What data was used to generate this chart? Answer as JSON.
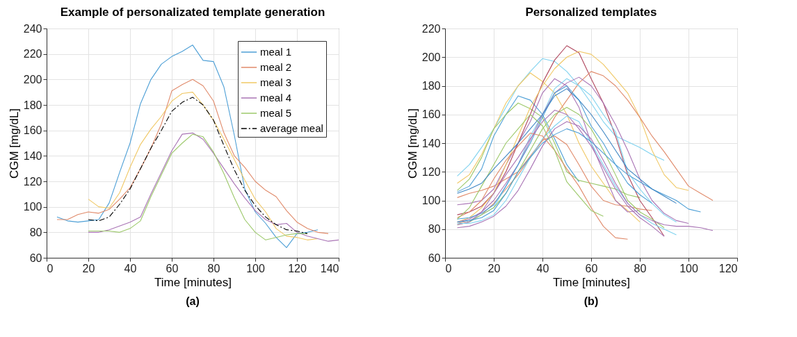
{
  "chart_data": [
    {
      "type": "line",
      "title": "Example of personalizated template generation",
      "xlabel": "Time [minutes]",
      "ylabel": "CGM [mg/dL]",
      "annotations": [
        "(a)"
      ],
      "xlim": [
        0,
        140
      ],
      "xticks": [
        0,
        20,
        40,
        60,
        80,
        100,
        120,
        140
      ],
      "ylim": [
        60,
        240
      ],
      "yticks": [
        60,
        80,
        100,
        120,
        140,
        160,
        180,
        200,
        220,
        240
      ],
      "grid": true,
      "legend": "top right",
      "marker": "none",
      "series": [
        {
          "name": "meal 1",
          "color": "#4d9fd6",
          "x": [
            5,
            10,
            15,
            20,
            25,
            30,
            35,
            40,
            45,
            50,
            55,
            60,
            65,
            70,
            75,
            80,
            85,
            90,
            95,
            100,
            105,
            110,
            115,
            120,
            125,
            130
          ],
          "values": [
            92,
            89,
            88,
            89,
            90,
            103,
            127,
            150,
            181,
            200,
            212,
            218,
            222,
            227,
            215,
            214,
            194,
            156,
            114,
            96,
            87,
            76,
            68,
            79,
            80,
            82
          ]
        },
        {
          "name": "meal 2",
          "color": "#e08a6a",
          "x": [
            5,
            10,
            15,
            20,
            25,
            30,
            35,
            40,
            45,
            50,
            55,
            60,
            65,
            70,
            75,
            80,
            85,
            90,
            95,
            100,
            105,
            110,
            115,
            120,
            125,
            130,
            135
          ],
          "values": [
            90,
            90,
            94,
            96,
            95,
            98,
            106,
            115,
            130,
            146,
            165,
            191,
            196,
            200,
            195,
            183,
            158,
            140,
            131,
            120,
            113,
            108,
            97,
            88,
            83,
            80,
            79
          ]
        },
        {
          "name": "meal 3",
          "color": "#f0c865",
          "x": [
            20,
            25,
            30,
            35,
            40,
            45,
            50,
            55,
            60,
            65,
            70,
            75,
            80,
            85,
            90,
            95,
            100,
            105,
            110,
            115,
            120,
            125,
            130
          ],
          "values": [
            106,
            100,
            99,
            111,
            131,
            149,
            161,
            171,
            183,
            189,
            190,
            180,
            168,
            153,
            137,
            121,
            106,
            96,
            83,
            77,
            76,
            74,
            75
          ]
        },
        {
          "name": "meal 4",
          "color": "#a974b5",
          "x": [
            20,
            25,
            30,
            35,
            40,
            45,
            50,
            55,
            60,
            65,
            70,
            75,
            80,
            85,
            90,
            95,
            100,
            105,
            110,
            115,
            120,
            125,
            130,
            135,
            140
          ],
          "values": [
            80,
            80,
            82,
            85,
            88,
            92,
            110,
            127,
            144,
            157,
            158,
            153,
            142,
            130,
            118,
            107,
            97,
            90,
            86,
            87,
            80,
            77,
            75,
            73,
            74
          ]
        },
        {
          "name": "meal 5",
          "color": "#9cc86a",
          "x": [
            20,
            25,
            30,
            35,
            40,
            45,
            50,
            55,
            60,
            65,
            70,
            75,
            80,
            85,
            90,
            95,
            100,
            105,
            110,
            115,
            120,
            125
          ],
          "values": [
            81,
            81,
            81,
            80,
            83,
            89,
            108,
            125,
            142,
            150,
            157,
            155,
            143,
            126,
            107,
            90,
            80,
            74,
            76,
            78,
            79,
            79
          ]
        },
        {
          "name": "average meal",
          "color": "#000000",
          "line_style": "dashdot",
          "x": [
            20,
            25,
            30,
            35,
            40,
            45,
            50,
            55,
            60,
            65,
            70,
            75,
            80,
            85,
            90,
            95,
            100,
            105,
            110,
            115,
            120,
            125
          ],
          "values": [
            90,
            89,
            92,
            102,
            114,
            130,
            146,
            160,
            175,
            182,
            186,
            180,
            168,
            148,
            129,
            113,
            101,
            92,
            86,
            82,
            81,
            79
          ]
        }
      ]
    },
    {
      "type": "line",
      "title": "Personalized templates",
      "xlabel": "Time [minutes]",
      "ylabel": "CGM [mg/dL]",
      "annotations": [
        "(b)"
      ],
      "xlim": [
        0,
        120
      ],
      "xticks": [
        0,
        20,
        40,
        60,
        80,
        100,
        120
      ],
      "ylim": [
        60,
        220
      ],
      "yticks": [
        60,
        80,
        100,
        120,
        140,
        160,
        180,
        200,
        220
      ],
      "grid": true,
      "legend": false,
      "marker": "none",
      "series": [
        {
          "color": "#7fd2ef",
          "x": [
            5,
            10,
            15,
            20,
            25,
            30,
            35,
            40,
            45,
            50,
            55,
            60,
            65,
            70,
            75,
            80,
            85,
            90
          ],
          "values": [
            117,
            125,
            137,
            150,
            165,
            180,
            190,
            199,
            197,
            190,
            180,
            168,
            155,
            145,
            141,
            137,
            132,
            128
          ]
        },
        {
          "color": "#f0c865",
          "x": [
            5,
            10,
            15,
            20,
            25,
            30,
            35,
            40,
            45,
            50,
            55,
            60,
            65,
            70,
            75,
            80
          ],
          "values": [
            112,
            118,
            132,
            150,
            168,
            180,
            189,
            183,
            175,
            160,
            140,
            124,
            112,
            100,
            93,
            85
          ]
        },
        {
          "color": "#4d9fd6",
          "x": [
            5,
            10,
            15,
            20,
            25,
            30,
            35,
            40,
            45,
            50,
            55
          ],
          "values": [
            106,
            110,
            122,
            145,
            160,
            173,
            170,
            160,
            143,
            125,
            113
          ]
        },
        {
          "color": "#9cc86a",
          "x": [
            5,
            10,
            15,
            20,
            25,
            30,
            35,
            40,
            45,
            50,
            55,
            60,
            65,
            70,
            75,
            80
          ],
          "values": [
            107,
            115,
            130,
            150,
            160,
            168,
            164,
            158,
            140,
            120,
            114,
            112,
            110,
            108,
            104,
            102
          ]
        },
        {
          "color": "#e08a6a",
          "x": [
            5,
            10,
            15,
            20,
            25,
            30,
            35,
            40,
            45,
            50,
            55,
            60,
            65,
            70,
            75,
            80,
            85
          ],
          "values": [
            102,
            105,
            107,
            110,
            115,
            120,
            131,
            142,
            145,
            139,
            125,
            110,
            100,
            97,
            96,
            94,
            93
          ]
        },
        {
          "color": "#a974b5",
          "x": [
            5,
            10,
            15,
            20,
            25,
            30,
            35,
            40,
            45,
            50,
            55,
            60,
            65,
            70,
            75,
            80
          ],
          "values": [
            97,
            98,
            100,
            108,
            125,
            140,
            155,
            175,
            185,
            180,
            165,
            140,
            120,
            100,
            92,
            93
          ]
        },
        {
          "color": "#b0475e",
          "x": [
            5,
            10,
            15,
            20,
            25,
            30,
            35,
            40,
            45,
            50,
            55,
            60,
            65,
            70,
            75,
            80,
            85,
            90
          ],
          "values": [
            90,
            92,
            96,
            105,
            120,
            140,
            160,
            182,
            198,
            208,
            203,
            185,
            168,
            145,
            118,
            100,
            88,
            75
          ]
        },
        {
          "color": "#f0c865",
          "x": [
            5,
            10,
            15,
            20,
            25,
            30,
            35,
            40,
            45,
            50,
            55,
            60,
            65,
            70,
            75,
            80,
            85,
            90,
            95,
            100
          ],
          "values": [
            85,
            88,
            95,
            105,
            125,
            145,
            165,
            180,
            192,
            200,
            204,
            202,
            195,
            185,
            175,
            158,
            135,
            118,
            109,
            107
          ]
        },
        {
          "color": "#e08a6a",
          "x": [
            5,
            10,
            15,
            20,
            25,
            30,
            35,
            40,
            45,
            50,
            55,
            60,
            65,
            70,
            75,
            80,
            85,
            90,
            95,
            100,
            105,
            110
          ],
          "values": [
            84,
            86,
            90,
            98,
            108,
            118,
            130,
            142,
            158,
            170,
            182,
            190,
            187,
            180,
            170,
            158,
            145,
            134,
            122,
            110,
            105,
            100
          ]
        },
        {
          "color": "#7fd2ef",
          "x": [
            5,
            10,
            15,
            20,
            25,
            30,
            35,
            40,
            45,
            50,
            55,
            60,
            65,
            70,
            75,
            80,
            85,
            90,
            95
          ],
          "values": [
            85,
            86,
            90,
            95,
            110,
            125,
            145,
            160,
            178,
            185,
            180,
            173,
            160,
            148,
            120,
            108,
            98,
            90,
            85
          ]
        },
        {
          "color": "#a974b5",
          "x": [
            5,
            10,
            15,
            20,
            25,
            30,
            35,
            40,
            45,
            50,
            55,
            60,
            65,
            70,
            75,
            80,
            85,
            90,
            95,
            100
          ],
          "values": [
            85,
            87,
            92,
            100,
            112,
            125,
            142,
            160,
            175,
            182,
            186,
            180,
            168,
            153,
            135,
            115,
            100,
            91,
            86,
            84
          ]
        },
        {
          "color": "#4d9fd6",
          "x": [
            5,
            10,
            15,
            20,
            25,
            30,
            35,
            40,
            45,
            50,
            55,
            60,
            65,
            70,
            75,
            80,
            85
          ],
          "values": [
            87,
            88,
            91,
            97,
            110,
            125,
            140,
            158,
            175,
            180,
            170,
            152,
            140,
            125,
            112,
            104,
            98
          ]
        },
        {
          "color": "#9cc86a",
          "x": [
            5,
            10,
            15,
            20,
            25,
            30,
            35,
            40,
            45,
            50,
            55,
            60,
            65,
            70,
            75,
            80,
            85,
            90
          ],
          "values": [
            83,
            85,
            90,
            95,
            105,
            120,
            135,
            150,
            160,
            165,
            160,
            150,
            135,
            118,
            100,
            92,
            87,
            81
          ]
        },
        {
          "color": "#a974b5",
          "x": [
            5,
            10,
            15,
            20,
            25,
            30,
            35,
            40,
            45,
            50,
            55,
            60,
            65,
            70,
            75,
            80,
            85,
            90
          ],
          "values": [
            83,
            85,
            92,
            105,
            118,
            130,
            143,
            155,
            163,
            160,
            150,
            138,
            123,
            108,
            96,
            88,
            82,
            75
          ]
        },
        {
          "color": "#7fd2ef",
          "x": [
            5,
            10,
            15,
            20,
            25,
            30,
            35,
            40,
            45,
            50,
            55,
            60,
            65,
            70,
            75,
            80,
            85,
            90,
            95
          ],
          "values": [
            84,
            84,
            86,
            90,
            100,
            115,
            130,
            143,
            152,
            159,
            155,
            140,
            125,
            110,
            98,
            90,
            84,
            80,
            76
          ]
        },
        {
          "color": "#a974b5",
          "x": [
            5,
            10,
            15,
            20,
            25,
            30,
            35,
            40,
            45,
            50,
            55,
            60,
            65,
            70,
            75,
            80,
            85,
            90,
            95,
            100,
            105,
            110
          ],
          "values": [
            81,
            82,
            85,
            89,
            96,
            107,
            122,
            138,
            150,
            155,
            152,
            143,
            128,
            112,
            98,
            90,
            86,
            83,
            82,
            82,
            81,
            79
          ]
        },
        {
          "color": "#4d9fd6",
          "x": [
            5,
            10,
            15,
            20,
            25,
            30,
            35,
            40,
            45,
            50,
            55,
            60,
            65,
            70,
            75,
            80,
            85,
            90,
            95,
            100,
            105
          ],
          "values": [
            85,
            86,
            88,
            93,
            105,
            120,
            130,
            140,
            146,
            150,
            147,
            141,
            133,
            125,
            118,
            113,
            108,
            104,
            100,
            94,
            92
          ]
        },
        {
          "color": "#e08a6a",
          "x": [
            5,
            10,
            15,
            20,
            25,
            30,
            35,
            40,
            45,
            50,
            55,
            60,
            65,
            70,
            75
          ],
          "values": [
            88,
            92,
            100,
            115,
            128,
            138,
            147,
            145,
            135,
            122,
            110,
            95,
            82,
            74,
            73
          ]
        },
        {
          "color": "#9cc86a",
          "x": [
            5,
            10,
            15,
            20,
            25,
            30,
            35,
            40,
            45,
            50,
            55,
            60,
            65
          ],
          "values": [
            87,
            95,
            110,
            125,
            140,
            150,
            160,
            152,
            135,
            113,
            103,
            93,
            89
          ]
        },
        {
          "color": "#3e86c4",
          "x": [
            5,
            10,
            15,
            20,
            25,
            30,
            35,
            40,
            45,
            50,
            55,
            60,
            65,
            70,
            75,
            80,
            85,
            90,
            95
          ],
          "values": [
            105,
            108,
            112,
            122,
            131,
            140,
            150,
            160,
            173,
            178,
            170,
            160,
            148,
            135,
            122,
            115,
            108,
            103,
            98
          ]
        }
      ]
    }
  ]
}
